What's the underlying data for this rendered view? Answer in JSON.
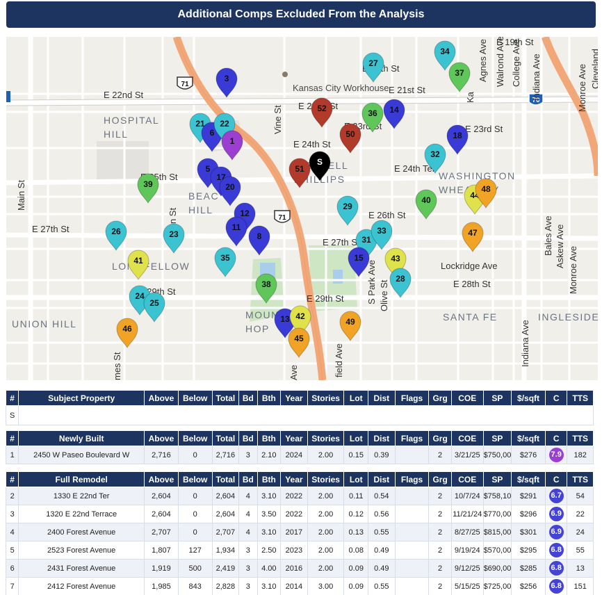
{
  "title": "Additional Comps Excluded From the Analysis",
  "map": {
    "landmark": "Kansas City Workhouse",
    "street_labels": [
      {
        "id": "e19th",
        "text": "E 19th St"
      },
      {
        "id": "e20th",
        "text": "E 20th St"
      },
      {
        "id": "e21st",
        "text": "E 21st St"
      },
      {
        "id": "e22nd-w",
        "text": "E 22nd St"
      },
      {
        "id": "e22nd-e",
        "text": "E 22nd St"
      },
      {
        "id": "e23rd-e",
        "text": "E 23rd St"
      },
      {
        "id": "e23rd-m",
        "text": "E 23rd St"
      },
      {
        "id": "e24th",
        "text": "E 24th St"
      },
      {
        "id": "e24th-ter",
        "text": "E 24th Ter"
      },
      {
        "id": "e25th",
        "text": "E 25th St"
      },
      {
        "id": "e26th",
        "text": "E 26th St"
      },
      {
        "id": "e27th-w",
        "text": "E 27th St"
      },
      {
        "id": "e27th-m",
        "text": "E 27th St"
      },
      {
        "id": "e28th",
        "text": "E 28th St"
      },
      {
        "id": "e29th-w",
        "text": "E 29th St"
      },
      {
        "id": "e29th-m",
        "text": "E 29th St"
      },
      {
        "id": "lockridge",
        "text": "Lockridge Ave"
      },
      {
        "id": "vine",
        "text": "Vine St"
      },
      {
        "id": "main",
        "text": "Main St"
      },
      {
        "id": "agnes",
        "text": "Agnes Ave"
      },
      {
        "id": "walrond",
        "text": "Walrond Ave"
      },
      {
        "id": "college",
        "text": "College Ave"
      },
      {
        "id": "indiana-n",
        "text": "Indiana Ave"
      },
      {
        "id": "indiana-s",
        "text": "Indiana Ave"
      },
      {
        "id": "monroe-n",
        "text": "Monroe Ave"
      },
      {
        "id": "monroe-s",
        "text": "Monroe Ave"
      },
      {
        "id": "cleveland",
        "text": "Cleveland"
      },
      {
        "id": "bales",
        "text": "Bales Ave"
      },
      {
        "id": "askew",
        "text": "Askew Ave"
      },
      {
        "id": "olive",
        "text": "Olive St"
      },
      {
        "id": "spark",
        "text": "S Park Ave"
      },
      {
        "id": "kansas-ave",
        "text": "Ka"
      },
      {
        "id": "garrison",
        "text": "rison St"
      },
      {
        "id": "brooklyn",
        "text": "field Ave"
      },
      {
        "id": "holmes",
        "text": "mes St"
      },
      {
        "id": "woodland",
        "text": "Ave"
      }
    ],
    "neighborhoods": [
      {
        "id": "hospital",
        "lines": [
          "HOSPITAL",
          "HILL"
        ]
      },
      {
        "id": "beacon",
        "lines": [
          "BEAC",
          "HILL"
        ]
      },
      {
        "id": "longfellow",
        "lines": [
          "LONGFELLOW"
        ]
      },
      {
        "id": "union",
        "lines": [
          "UNION HILL"
        ]
      },
      {
        "id": "mount",
        "lines": [
          "MOUNT",
          "HOP"
        ]
      },
      {
        "id": "wendell",
        "lines": [
          "WENDELL",
          "PHILLIPS"
        ]
      },
      {
        "id": "washington",
        "lines": [
          "WASHINGTON",
          "WHEATLEY"
        ]
      },
      {
        "id": "santafe",
        "lines": [
          "SANTA FE"
        ]
      },
      {
        "id": "ingleside",
        "lines": [
          "INGLESIDE"
        ]
      }
    ],
    "highway_shields": [
      {
        "id": "us71-n",
        "text": "71"
      },
      {
        "id": "us71-m",
        "text": "71"
      },
      {
        "id": "i70",
        "text": "70"
      }
    ],
    "pin_colors": {
      "blue": "#3a3ad6",
      "teal": "#3cc3d2",
      "green": "#5fc65a",
      "red": "#b23a2a",
      "yellow": "#dfe24a",
      "orange": "#f0a325",
      "purple": "#9b3fd1",
      "black": "#000000"
    },
    "pins": [
      {
        "label": "3",
        "color": "blue"
      },
      {
        "label": "21",
        "color": "teal"
      },
      {
        "label": "6",
        "color": "blue"
      },
      {
        "label": "22",
        "color": "teal"
      },
      {
        "label": "1",
        "color": "purple"
      },
      {
        "label": "5",
        "color": "blue"
      },
      {
        "label": "17",
        "color": "blue"
      },
      {
        "label": "20",
        "color": "blue"
      },
      {
        "label": "12",
        "color": "blue"
      },
      {
        "label": "11",
        "color": "blue"
      },
      {
        "label": "8",
        "color": "blue"
      },
      {
        "label": "35",
        "color": "teal"
      },
      {
        "label": "38",
        "color": "green"
      },
      {
        "label": "39",
        "color": "green"
      },
      {
        "label": "26",
        "color": "teal"
      },
      {
        "label": "23",
        "color": "teal"
      },
      {
        "label": "41",
        "color": "yellow"
      },
      {
        "label": "24",
        "color": "teal"
      },
      {
        "label": "25",
        "color": "teal"
      },
      {
        "label": "46",
        "color": "orange"
      },
      {
        "label": "13",
        "color": "blue"
      },
      {
        "label": "42",
        "color": "yellow"
      },
      {
        "label": "45",
        "color": "orange"
      },
      {
        "label": "49",
        "color": "orange"
      },
      {
        "label": "52",
        "color": "red"
      },
      {
        "label": "50",
        "color": "red"
      },
      {
        "label": "51",
        "color": "red"
      },
      {
        "label": "S",
        "color": "black"
      },
      {
        "label": "27",
        "color": "teal"
      },
      {
        "label": "36",
        "color": "green"
      },
      {
        "label": "14",
        "color": "blue"
      },
      {
        "label": "34",
        "color": "teal"
      },
      {
        "label": "37",
        "color": "green"
      },
      {
        "label": "18",
        "color": "blue"
      },
      {
        "label": "32",
        "color": "teal"
      },
      {
        "label": "29",
        "color": "teal"
      },
      {
        "label": "40",
        "color": "green"
      },
      {
        "label": "44",
        "color": "yellow"
      },
      {
        "label": "48",
        "color": "orange"
      },
      {
        "label": "47",
        "color": "orange"
      },
      {
        "label": "31",
        "color": "teal"
      },
      {
        "label": "33",
        "color": "teal"
      },
      {
        "label": "15",
        "color": "blue"
      },
      {
        "label": "43",
        "color": "yellow"
      },
      {
        "label": "28",
        "color": "teal"
      }
    ]
  },
  "subject_table": {
    "headers": [
      "#",
      "Subject Property",
      "Above",
      "Below",
      "Total",
      "Bd",
      "Bth",
      "Year",
      "Stories",
      "Lot",
      "Dist",
      "Flags",
      "Grg",
      "COE",
      "SP",
      "$/sqft",
      "C",
      "TTS"
    ],
    "row_label": "S"
  },
  "newly_built": {
    "headers": [
      "#",
      "Newly Built",
      "Above",
      "Below",
      "Total",
      "Bd",
      "Bth",
      "Year",
      "Stories",
      "Lot",
      "Dist",
      "Flags",
      "Grg",
      "COE",
      "SP",
      "$/sqft",
      "C",
      "TTS"
    ],
    "rows": [
      {
        "num": "1",
        "address": "2450 W Paseo Boulevard W",
        "above": "2,716",
        "below": "0",
        "total": "2,716",
        "bd": "3",
        "bth": "2.10",
        "year": "2024",
        "stories": "2.00",
        "lot": "0.15",
        "dist": "0.39",
        "flags": "",
        "grg": "2",
        "coe": "3/21/25",
        "sp": "$750,000",
        "psf": "$276",
        "c": "7.9",
        "tts": "182"
      }
    ]
  },
  "full_remodel": {
    "headers": [
      "#",
      "Full Remodel",
      "Above",
      "Below",
      "Total",
      "Bd",
      "Bth",
      "Year",
      "Stories",
      "Lot",
      "Dist",
      "Flags",
      "Grg",
      "COE",
      "SP",
      "$/sqft",
      "C",
      "TTS"
    ],
    "rows": [
      {
        "num": "2",
        "address": "1330 E 22nd Ter",
        "above": "2,604",
        "below": "0",
        "total": "2,604",
        "bd": "4",
        "bth": "3.10",
        "year": "2022",
        "stories": "2.00",
        "lot": "0.11",
        "dist": "0.54",
        "flags": "",
        "grg": "2",
        "coe": "10/7/24",
        "sp": "$758,100",
        "psf": "$291",
        "c": "6.7",
        "tts": "54"
      },
      {
        "num": "3",
        "address": "1320 E 22nd Terrace",
        "above": "2,604",
        "below": "0",
        "total": "2,604",
        "bd": "4",
        "bth": "3.50",
        "year": "2022",
        "stories": "2.00",
        "lot": "0.12",
        "dist": "0.56",
        "flags": "",
        "grg": "2",
        "coe": "11/21/24",
        "sp": "$770,000",
        "psf": "$296",
        "c": "6.9",
        "tts": "22"
      },
      {
        "num": "4",
        "address": "2400 Forest Avenue",
        "above": "2,707",
        "below": "0",
        "total": "2,707",
        "bd": "4",
        "bth": "3.10",
        "year": "2017",
        "stories": "2.00",
        "lot": "0.13",
        "dist": "0.55",
        "flags": "",
        "grg": "2",
        "coe": "8/27/25",
        "sp": "$815,000",
        "psf": "$301",
        "c": "6.9",
        "tts": "24"
      },
      {
        "num": "5",
        "address": "2523 Forest Avenue",
        "above": "1,807",
        "below": "127",
        "total": "1,934",
        "bd": "3",
        "bth": "2.50",
        "year": "2023",
        "stories": "2.00",
        "lot": "0.08",
        "dist": "0.49",
        "flags": "",
        "grg": "2",
        "coe": "9/19/24",
        "sp": "$570,000",
        "psf": "$295",
        "c": "6.8",
        "tts": "55"
      },
      {
        "num": "6",
        "address": "2431 Forest Avenue",
        "above": "1,919",
        "below": "500",
        "total": "2,419",
        "bd": "3",
        "bth": "4.00",
        "year": "2016",
        "stories": "2.00",
        "lot": "0.09",
        "dist": "0.49",
        "flags": "",
        "grg": "2",
        "coe": "9/12/25",
        "sp": "$690,000",
        "psf": "$285",
        "c": "6.8",
        "tts": "13"
      },
      {
        "num": "7",
        "address": "2412 Forest Avenue",
        "above": "1,985",
        "below": "843",
        "total": "2,828",
        "bd": "3",
        "bth": "3.10",
        "year": "2014",
        "stories": "3.00",
        "lot": "0.09",
        "dist": "0.55",
        "flags": "",
        "grg": "2",
        "coe": "5/15/25",
        "sp": "$725,000",
        "psf": "$256",
        "c": "6.8",
        "tts": "151"
      }
    ]
  },
  "badge_colors": {
    "purple": "#9b3fd1",
    "blue": "#4343d8"
  }
}
